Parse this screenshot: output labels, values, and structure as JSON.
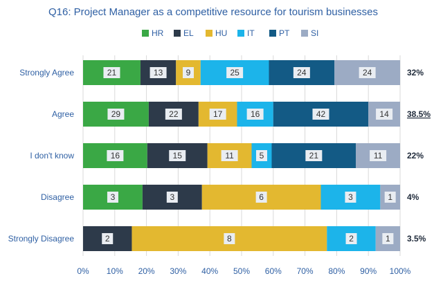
{
  "chart_data": {
    "type": "bar",
    "orientation": "horizontal",
    "stacked": "100%",
    "title": "Q16: Project Manager as a competitive resource for tourism businesses",
    "categories": [
      "Strongly Agree",
      "Agree",
      "I don't know",
      "Disagree",
      "Strongly Disagree"
    ],
    "series": [
      {
        "name": "HR",
        "color": "#3aa845",
        "values": [
          21,
          29,
          16,
          3,
          0
        ]
      },
      {
        "name": "EL",
        "color": "#2d3a4a",
        "values": [
          13,
          22,
          15,
          3,
          2
        ]
      },
      {
        "name": "HU",
        "color": "#e3b830",
        "values": [
          9,
          17,
          11,
          6,
          8
        ]
      },
      {
        "name": "IT",
        "color": "#1cb4ea",
        "values": [
          25,
          16,
          5,
          3,
          2
        ]
      },
      {
        "name": "PT",
        "color": "#135a85",
        "values": [
          24,
          42,
          21,
          0,
          0
        ]
      },
      {
        "name": "SI",
        "color": "#9cabc4",
        "values": [
          24,
          14,
          11,
          1,
          1
        ]
      }
    ],
    "right_labels": [
      "32%",
      "38.5%",
      "22%",
      "4%",
      "3.5%"
    ],
    "right_label_underlined": [
      false,
      true,
      false,
      false,
      false
    ],
    "x_ticks": [
      "0%",
      "10%",
      "20%",
      "30%",
      "40%",
      "50%",
      "60%",
      "70%",
      "80%",
      "90%",
      "100%"
    ],
    "xlim": [
      0,
      100
    ],
    "legend_position": "top"
  }
}
